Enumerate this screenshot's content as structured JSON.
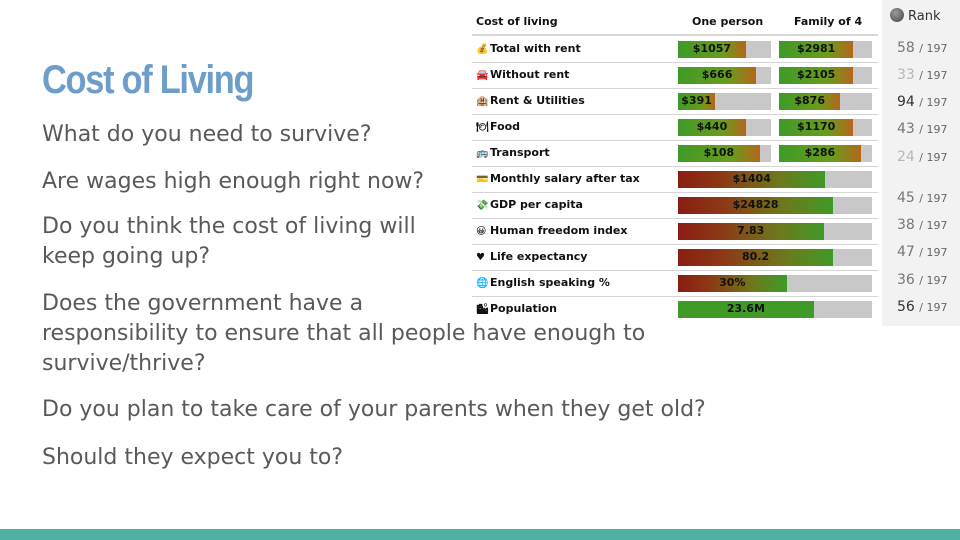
{
  "slide": {
    "title": "Cost of Living",
    "questions": [
      "What do you need to survive?",
      "Are wages high enough right now?",
      "Do you think the cost of living will",
      "keep going up?",
      "Does the government have a",
      "responsibility to ensure that all people have enough to",
      "survive/thrive?",
      "Do you plan to take care of your parents when they get old?",
      "Should they expect you to?"
    ],
    "accent_color": "#4fb0a3",
    "title_color": "#6d9eca"
  },
  "table": {
    "headers": [
      "Cost of living",
      "One person",
      "Family of 4"
    ],
    "rows": [
      {
        "icon": "money-bag-icon",
        "label": "Total with rent",
        "one": "$1057",
        "one_level": 0.73,
        "fam": "$2981",
        "fam_level": 0.8
      },
      {
        "icon": "car-icon",
        "label": "Without rent",
        "one": "$666",
        "one_level": 0.84,
        "fam": "$2105",
        "fam_level": 0.8
      },
      {
        "icon": "building-icon",
        "label": "Rent & Utilities",
        "one": "$391",
        "one_level": 0.4,
        "fam": "$876",
        "fam_level": 0.66
      },
      {
        "icon": "food-icon",
        "label": "Food",
        "one": "$440",
        "one_level": 0.73,
        "fam": "$1170",
        "fam_level": 0.8
      },
      {
        "icon": "bus-icon",
        "label": "Transport",
        "one": "$108",
        "one_level": 0.88,
        "fam": "$286",
        "fam_level": 0.88
      }
    ],
    "wide_rows": [
      {
        "icon": "salary-icon",
        "label": "Monthly salary after tax",
        "value": "$1404",
        "level": 0.76
      },
      {
        "icon": "gdp-icon",
        "label": "GDP per capita",
        "value": "$24828",
        "level": 0.8
      },
      {
        "icon": "smiley-icon",
        "label": "Human freedom index",
        "value": "7.83",
        "level": 0.75
      },
      {
        "icon": "heart-icon",
        "label": "Life expectancy",
        "value": "80.2",
        "level": 0.8
      },
      {
        "icon": "globe-icon",
        "label": "English speaking %",
        "value": "30%",
        "level": 0.56
      },
      {
        "icon": "population-icon",
        "label": "Population",
        "value": "23.6M",
        "level": 0.7
      }
    ]
  },
  "rank": {
    "header": "Rank",
    "rows": [
      {
        "rank": "58",
        "total": "/ 197"
      },
      {
        "rank": "33",
        "total": "/ 197"
      },
      {
        "rank": "94",
        "total": "/ 197"
      },
      {
        "rank": "43",
        "total": "/ 197"
      },
      {
        "rank": "24",
        "total": "/ 197"
      },
      {
        "rank": "45",
        "total": "/ 197"
      },
      {
        "rank": "38",
        "total": "/ 197"
      },
      {
        "rank": "47",
        "total": "/ 197"
      },
      {
        "rank": "36",
        "total": "/ 197"
      },
      {
        "rank": "56",
        "total": "/ 197"
      }
    ]
  }
}
